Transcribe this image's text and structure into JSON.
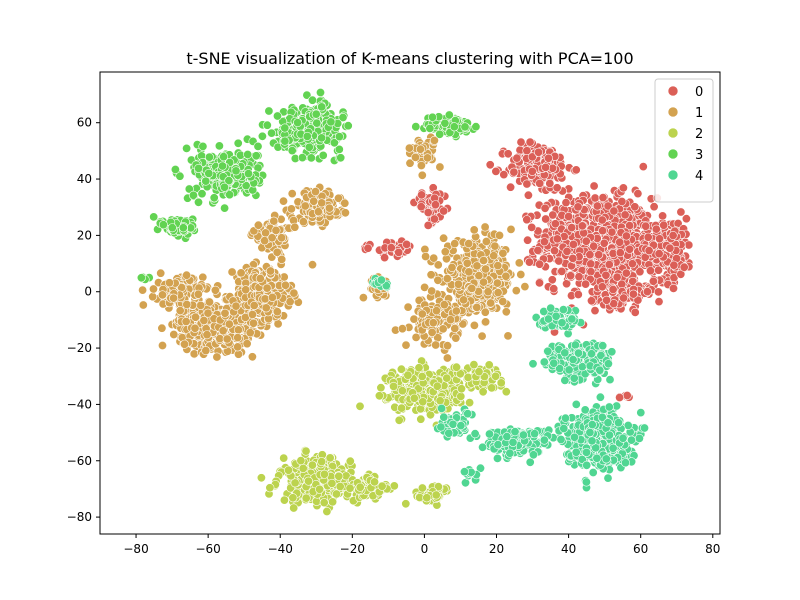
{
  "chart_data": {
    "type": "scatter",
    "title": "t-SNE visualization of K-means clustering with PCA=100",
    "xlabel": "",
    "ylabel": "",
    "xlim": [
      -90,
      82
    ],
    "ylim": [
      -86,
      78
    ],
    "xticks": [
      -80,
      -60,
      -40,
      -20,
      0,
      20,
      40,
      60,
      80
    ],
    "yticks": [
      -80,
      -60,
      -40,
      -20,
      0,
      20,
      40,
      60
    ],
    "xtick_labels": [
      "−80",
      "−60",
      "−40",
      "−20",
      "0",
      "20",
      "40",
      "60",
      "80"
    ],
    "ytick_labels": [
      "−80",
      "−60",
      "−40",
      "−20",
      "0",
      "20",
      "40",
      "60"
    ],
    "grid": false,
    "legend": {
      "placement": "top-right",
      "entries": [
        "0",
        "1",
        "2",
        "3",
        "4"
      ]
    },
    "series": [
      {
        "name": "0",
        "color": "#db5f57",
        "clusters": [
          {
            "center": [
              48,
              18
            ],
            "spread": [
              14,
              14
            ],
            "count": 900
          },
          {
            "center": [
              32,
              44
            ],
            "spread": [
              8,
              8
            ],
            "count": 160
          },
          {
            "center": [
              68,
              15
            ],
            "spread": [
              6,
              10
            ],
            "count": 160
          },
          {
            "center": [
              55,
              0
            ],
            "spread": [
              8,
              5
            ],
            "count": 140
          },
          {
            "center": [
              2,
              30
            ],
            "spread": [
              4,
              5
            ],
            "count": 50
          },
          {
            "center": [
              -8,
              15
            ],
            "spread": [
              4,
              3
            ],
            "count": 40
          },
          {
            "center": [
              -16,
              16
            ],
            "spread": [
              1,
              1
            ],
            "count": 5
          },
          {
            "center": [
              55,
              -37
            ],
            "spread": [
              3,
              1
            ],
            "count": 6
          }
        ]
      },
      {
        "name": "1",
        "color": "#d3a250",
        "clusters": [
          {
            "center": [
              -58,
              -12
            ],
            "spread": [
              9,
              7
            ],
            "count": 650
          },
          {
            "center": [
              -45,
              0
            ],
            "spread": [
              7,
              8
            ],
            "count": 300
          },
          {
            "center": [
              -68,
              0
            ],
            "spread": [
              6,
              5
            ],
            "count": 120
          },
          {
            "center": [
              -30,
              30
            ],
            "spread": [
              6,
              5
            ],
            "count": 170
          },
          {
            "center": [
              -42,
              20
            ],
            "spread": [
              5,
              5
            ],
            "count": 100
          },
          {
            "center": [
              15,
              5
            ],
            "spread": [
              9,
              11
            ],
            "count": 420
          },
          {
            "center": [
              3,
              -10
            ],
            "spread": [
              6,
              7
            ],
            "count": 130
          },
          {
            "center": [
              0,
              50
            ],
            "spread": [
              3,
              5
            ],
            "count": 40
          },
          {
            "center": [
              -13,
              2
            ],
            "spread": [
              3,
              3
            ],
            "count": 30
          }
        ]
      },
      {
        "name": "2",
        "color": "#bcd34e",
        "clusters": [
          {
            "center": [
              0,
              -35
            ],
            "spread": [
              9,
              7
            ],
            "count": 330
          },
          {
            "center": [
              -30,
              -67
            ],
            "spread": [
              9,
              7
            ],
            "count": 300
          },
          {
            "center": [
              -15,
              -70
            ],
            "spread": [
              5,
              4
            ],
            "count": 80
          },
          {
            "center": [
              2,
              -72
            ],
            "spread": [
              5,
              3
            ],
            "count": 50
          },
          {
            "center": [
              15,
              -30
            ],
            "spread": [
              6,
              4
            ],
            "count": 60
          }
        ]
      },
      {
        "name": "3",
        "color": "#62d352",
        "clusters": [
          {
            "center": [
              -32,
              58
            ],
            "spread": [
              8,
              7
            ],
            "count": 380
          },
          {
            "center": [
              -55,
              42
            ],
            "spread": [
              8,
              8
            ],
            "count": 250
          },
          {
            "center": [
              -68,
              23
            ],
            "spread": [
              4,
              3
            ],
            "count": 70
          },
          {
            "center": [
              7,
              59
            ],
            "spread": [
              6,
              3
            ],
            "count": 90
          },
          {
            "center": [
              -78,
              5
            ],
            "spread": [
              2,
              1
            ],
            "count": 6
          }
        ]
      },
      {
        "name": "4",
        "color": "#50d692",
        "clusters": [
          {
            "center": [
              48,
              -52
            ],
            "spread": [
              8,
              9
            ],
            "count": 420
          },
          {
            "center": [
              25,
              -53
            ],
            "spread": [
              8,
              4
            ],
            "count": 200
          },
          {
            "center": [
              43,
              -25
            ],
            "spread": [
              8,
              6
            ],
            "count": 200
          },
          {
            "center": [
              8,
              -47
            ],
            "spread": [
              4,
              4
            ],
            "count": 60
          },
          {
            "center": [
              38,
              -10
            ],
            "spread": [
              6,
              4
            ],
            "count": 60
          },
          {
            "center": [
              -12,
              3
            ],
            "spread": [
              2,
              2
            ],
            "count": 15
          },
          {
            "center": [
              13,
              -65
            ],
            "spread": [
              2,
              2
            ],
            "count": 10
          }
        ]
      }
    ]
  }
}
